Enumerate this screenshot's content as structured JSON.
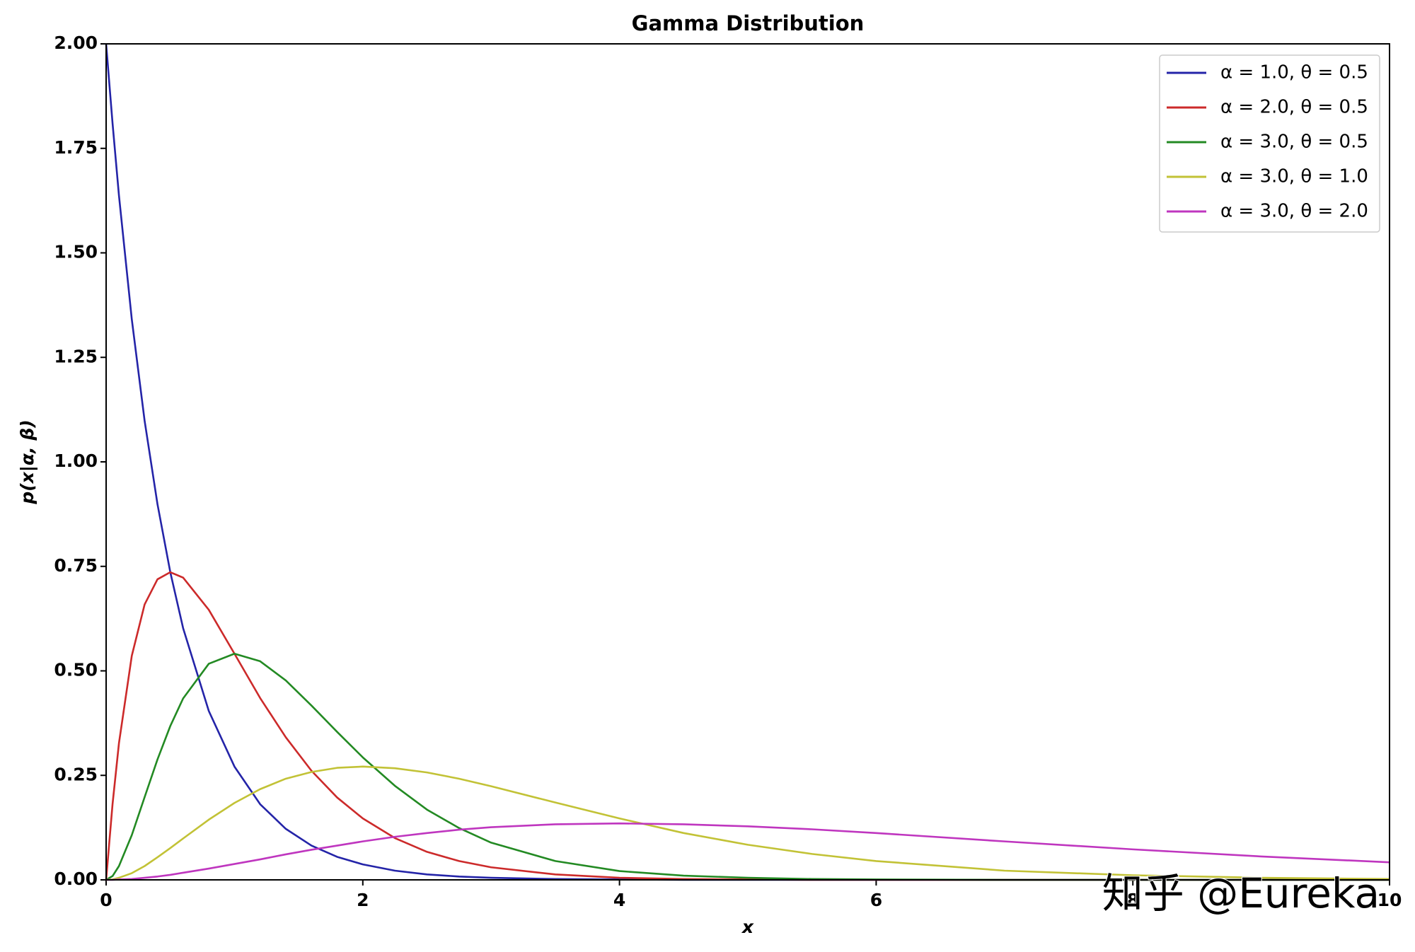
{
  "chart_data": {
    "type": "line",
    "title": "Gamma Distribution",
    "xlabel": "x",
    "ylabel": "p(x|α, β)",
    "watermark": "知乎 @Eureka",
    "xlim": [
      0,
      10
    ],
    "ylim": [
      0,
      2
    ],
    "xticks": [
      0,
      2,
      4,
      6,
      8,
      10
    ],
    "yticks": [
      {
        "value": 0,
        "label": "0.00"
      },
      {
        "value": 0.25,
        "label": "0.25"
      },
      {
        "value": 0.5,
        "label": "0.50"
      },
      {
        "value": 0.75,
        "label": "0.75"
      },
      {
        "value": 1,
        "label": "1.00"
      },
      {
        "value": 1.25,
        "label": "1.25"
      },
      {
        "value": 1.5,
        "label": "1.50"
      },
      {
        "value": 1.75,
        "label": "1.75"
      },
      {
        "value": 2,
        "label": "2.00"
      }
    ],
    "grid": false,
    "legend": "upper right",
    "x": [
      0,
      0.05,
      0.1,
      0.2,
      0.3,
      0.4,
      0.5,
      0.6,
      0.8,
      1,
      1.2,
      1.4,
      1.6,
      1.8,
      2,
      2.25,
      2.5,
      2.75,
      3,
      3.5,
      4,
      4.5,
      5,
      5.5,
      6,
      7,
      8,
      9,
      10
    ],
    "series": [
      {
        "name": "α = 1.0,  θ = 0.5",
        "color": "#2424a8",
        "values": [
          2,
          1.81,
          1.637,
          1.341,
          1.098,
          0.899,
          0.736,
          0.602,
          0.404,
          0.271,
          0.181,
          0.122,
          0.082,
          0.055,
          0.037,
          0.022,
          0.013,
          0.008,
          0.005,
          0.002,
          0.001,
          0,
          0,
          0,
          0,
          0,
          0,
          0,
          0
        ]
      },
      {
        "name": "α = 2.0,  θ = 0.5",
        "color": "#cc2a2a",
        "values": [
          0,
          0.181,
          0.327,
          0.536,
          0.659,
          0.719,
          0.736,
          0.723,
          0.646,
          0.541,
          0.435,
          0.341,
          0.261,
          0.197,
          0.147,
          0.1,
          0.067,
          0.045,
          0.03,
          0.013,
          0.005,
          0.002,
          0.001,
          0,
          0,
          0,
          0,
          0,
          0
        ]
      },
      {
        "name": "α = 3.0,  θ = 0.5",
        "color": "#238a23",
        "values": [
          0,
          0.009,
          0.033,
          0.107,
          0.198,
          0.288,
          0.368,
          0.434,
          0.517,
          0.541,
          0.523,
          0.477,
          0.417,
          0.354,
          0.293,
          0.225,
          0.168,
          0.124,
          0.089,
          0.045,
          0.021,
          0.01,
          0.005,
          0.002,
          0.001,
          0,
          0,
          0,
          0
        ]
      },
      {
        "name": "α = 3.0,  θ = 1.0",
        "color": "#c2c236",
        "values": [
          0,
          0.001,
          0.005,
          0.016,
          0.033,
          0.054,
          0.076,
          0.099,
          0.144,
          0.184,
          0.217,
          0.242,
          0.258,
          0.268,
          0.271,
          0.267,
          0.257,
          0.242,
          0.224,
          0.185,
          0.147,
          0.112,
          0.084,
          0.062,
          0.045,
          0.022,
          0.011,
          0.005,
          0.002
        ]
      },
      {
        "name": "α = 3.0,  θ = 2.0",
        "color": "#bf36bf",
        "values": [
          0,
          0,
          0.001,
          0.002,
          0.005,
          0.008,
          0.012,
          0.017,
          0.027,
          0.038,
          0.049,
          0.061,
          0.072,
          0.082,
          0.092,
          0.103,
          0.112,
          0.12,
          0.126,
          0.133,
          0.135,
          0.133,
          0.128,
          0.121,
          0.112,
          0.092,
          0.073,
          0.056,
          0.042
        ]
      }
    ]
  }
}
